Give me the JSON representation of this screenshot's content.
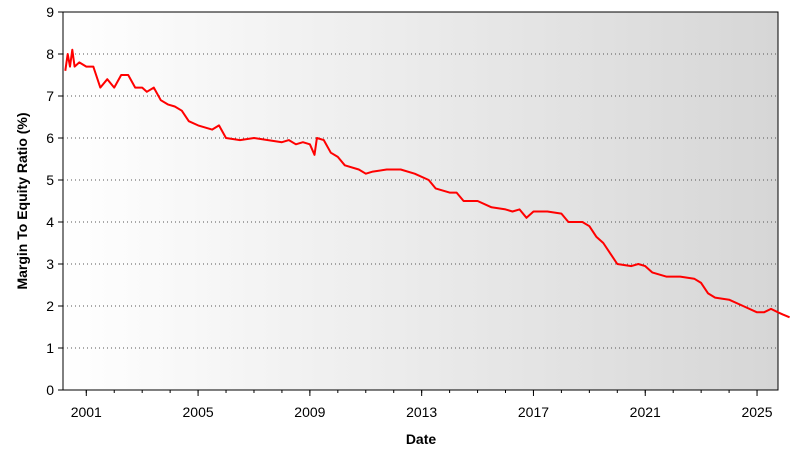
{
  "chart_data": {
    "type": "line",
    "title": "",
    "xlabel": "Date",
    "ylabel": "Margin To Equity Ratio (%)",
    "ylim": [
      0,
      9
    ],
    "xlim": [
      "2000-03",
      "2025-10"
    ],
    "x_ticks": [
      "2001",
      "2005",
      "2009",
      "2013",
      "2017",
      "2021",
      "2025"
    ],
    "y_ticks": [
      "0",
      "1",
      "2",
      "3",
      "4",
      "5",
      "6",
      "7",
      "8",
      "9"
    ],
    "grid": "horizontal-dotted",
    "background": "gradient-white-to-gray",
    "series": [
      {
        "color": "#ff0000",
        "points": [
          [
            "2000-04",
            7.6
          ],
          [
            "2000-05",
            8.0
          ],
          [
            "2000-06",
            7.7
          ],
          [
            "2000-07",
            8.1
          ],
          [
            "2000-08",
            7.7
          ],
          [
            "2000-10",
            7.8
          ],
          [
            "2001-01",
            7.7
          ],
          [
            "2001-04",
            7.7
          ],
          [
            "2001-07",
            7.2
          ],
          [
            "2001-10",
            7.4
          ],
          [
            "2002-01",
            7.2
          ],
          [
            "2002-04",
            7.5
          ],
          [
            "2002-07",
            7.5
          ],
          [
            "2002-10",
            7.2
          ],
          [
            "2003-01",
            7.2
          ],
          [
            "2003-03",
            7.1
          ],
          [
            "2003-06",
            7.2
          ],
          [
            "2003-09",
            6.9
          ],
          [
            "2003-12",
            6.8
          ],
          [
            "2004-03",
            6.75
          ],
          [
            "2004-06",
            6.65
          ],
          [
            "2004-09",
            6.4
          ],
          [
            "2005-01",
            6.3
          ],
          [
            "2005-07",
            6.2
          ],
          [
            "2005-10",
            6.3
          ],
          [
            "2006-01",
            6.0
          ],
          [
            "2006-07",
            5.95
          ],
          [
            "2007-01",
            6.0
          ],
          [
            "2007-07",
            5.95
          ],
          [
            "2008-01",
            5.9
          ],
          [
            "2008-04",
            5.95
          ],
          [
            "2008-07",
            5.85
          ],
          [
            "2008-10",
            5.9
          ],
          [
            "2009-01",
            5.85
          ],
          [
            "2009-03",
            5.6
          ],
          [
            "2009-04",
            6.0
          ],
          [
            "2009-07",
            5.95
          ],
          [
            "2009-10",
            5.65
          ],
          [
            "2010-01",
            5.55
          ],
          [
            "2010-04",
            5.35
          ],
          [
            "2010-10",
            5.25
          ],
          [
            "2011-01",
            5.15
          ],
          [
            "2011-04",
            5.2
          ],
          [
            "2011-10",
            5.25
          ],
          [
            "2012-04",
            5.25
          ],
          [
            "2012-10",
            5.15
          ],
          [
            "2013-04",
            5.0
          ],
          [
            "2013-07",
            4.8
          ],
          [
            "2014-01",
            4.7
          ],
          [
            "2014-04",
            4.7
          ],
          [
            "2014-07",
            4.5
          ],
          [
            "2015-01",
            4.5
          ],
          [
            "2015-07",
            4.35
          ],
          [
            "2016-01",
            4.3
          ],
          [
            "2016-04",
            4.25
          ],
          [
            "2016-07",
            4.3
          ],
          [
            "2016-10",
            4.1
          ],
          [
            "2017-01",
            4.25
          ],
          [
            "2017-07",
            4.25
          ],
          [
            "2018-01",
            4.2
          ],
          [
            "2018-04",
            4.0
          ],
          [
            "2018-10",
            4.0
          ],
          [
            "2019-01",
            3.9
          ],
          [
            "2019-04",
            3.65
          ],
          [
            "2019-07",
            3.5
          ],
          [
            "2020-01",
            3.0
          ],
          [
            "2020-07",
            2.95
          ],
          [
            "2020-10",
            3.0
          ],
          [
            "2021-01",
            2.95
          ],
          [
            "2021-04",
            2.8
          ],
          [
            "2021-10",
            2.7
          ],
          [
            "2022-04",
            2.7
          ],
          [
            "2022-10",
            2.65
          ],
          [
            "2023-01",
            2.55
          ],
          [
            "2023-04",
            2.3
          ],
          [
            "2023-07",
            2.2
          ],
          [
            "2024-01",
            2.15
          ],
          [
            "2024-07",
            2.0
          ],
          [
            "2025-01",
            1.85
          ],
          [
            "2025-04",
            1.85
          ],
          [
            "2025-07",
            1.93
          ],
          [
            "2025-10",
            1.85
          ],
          [
            "2025-12",
            1.8
          ],
          [
            "2026-03",
            1.73
          ]
        ]
      }
    ]
  }
}
